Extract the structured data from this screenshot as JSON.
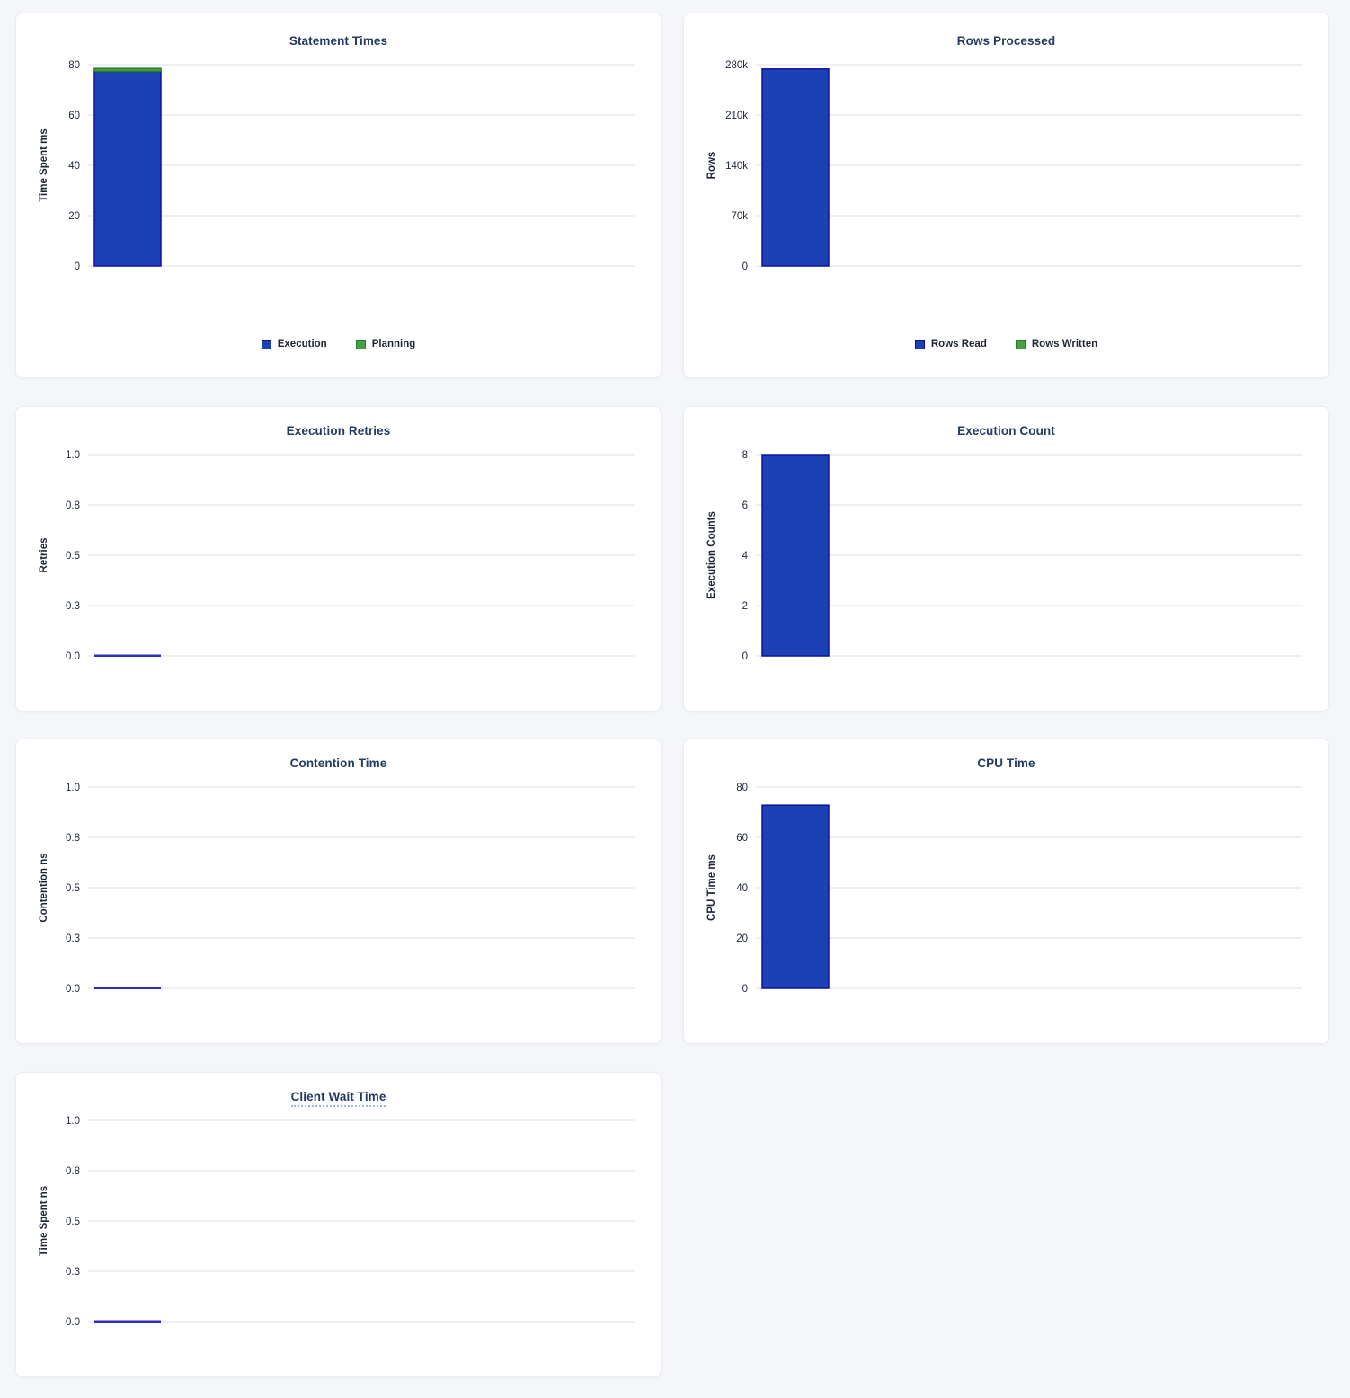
{
  "theme": {
    "page_background": "#f4f6fa",
    "card_background": "#ffffff",
    "card_border": "#e9edf3",
    "gridline_color": "#e9ebef",
    "tick_label_color": "#20293a",
    "axis_label_color": "#1d2533",
    "title_color": "#243a64",
    "series_blue": "#1c41b5",
    "series_blue_border": "#10129e",
    "series_green": "#44a33f",
    "series_green_border": "#2c7a2e",
    "zero_line_color": "#2d2ebc"
  },
  "chart_data": [
    {
      "type": "bar",
      "stacked": true,
      "title": "Statement Times",
      "xlabel": "",
      "ylabel": "Time Spent ms",
      "yticks": [
        "80",
        "60",
        "40",
        "20",
        "0"
      ],
      "ylim": [
        0,
        80
      ],
      "grid": true,
      "legend": true,
      "legend_position": "bottom",
      "categories": [
        ""
      ],
      "series": [
        {
          "name": "Execution",
          "color": "#1c41b5",
          "border_color": "#10129e",
          "values": [
            77.3
          ]
        },
        {
          "name": "Planning",
          "color": "#44a33f",
          "border_color": "#2c7a2e",
          "values": [
            1.2
          ]
        }
      ]
    },
    {
      "type": "bar",
      "stacked": true,
      "title": "Rows Processed",
      "xlabel": "",
      "ylabel": "Rows",
      "yticks": [
        "280k",
        "210k",
        "140k",
        "70k",
        "0"
      ],
      "ylim": [
        0,
        280000
      ],
      "grid": true,
      "legend": true,
      "legend_position": "bottom",
      "categories": [
        ""
      ],
      "series": [
        {
          "name": "Rows Read",
          "color": "#1c41b5",
          "border_color": "#10129e",
          "values": [
            274000
          ]
        },
        {
          "name": "Rows Written",
          "color": "#44a33f",
          "border_color": "#2c7a2e",
          "values": [
            0
          ]
        }
      ]
    },
    {
      "type": "bar",
      "stacked": false,
      "title": "Execution Retries",
      "xlabel": "",
      "ylabel": "Retries",
      "yticks": [
        "1.0",
        "0.8",
        "0.5",
        "0.3",
        "0.0"
      ],
      "ylim": [
        0,
        1
      ],
      "grid": true,
      "legend": false,
      "categories": [
        ""
      ],
      "series": [
        {
          "name": "Retries",
          "color": "#1c41b5",
          "border_color": "#10129e",
          "values": [
            0
          ]
        }
      ]
    },
    {
      "type": "bar",
      "stacked": false,
      "title": "Execution Count",
      "xlabel": "",
      "ylabel": "Execution Counts",
      "yticks": [
        "8",
        "6",
        "4",
        "2",
        "0"
      ],
      "ylim": [
        0,
        8
      ],
      "grid": true,
      "legend": false,
      "categories": [
        ""
      ],
      "series": [
        {
          "name": "Execution Count",
          "color": "#1c41b5",
          "border_color": "#10129e",
          "values": [
            8
          ]
        }
      ]
    },
    {
      "type": "bar",
      "stacked": false,
      "title": "Contention Time",
      "xlabel": "",
      "ylabel": "Contention ns",
      "yticks": [
        "1.0",
        "0.8",
        "0.5",
        "0.3",
        "0.0"
      ],
      "ylim": [
        0,
        1
      ],
      "grid": true,
      "legend": false,
      "categories": [
        ""
      ],
      "series": [
        {
          "name": "Contention",
          "color": "#1c41b5",
          "border_color": "#10129e",
          "values": [
            0
          ]
        }
      ]
    },
    {
      "type": "bar",
      "stacked": false,
      "title": "CPU Time",
      "xlabel": "",
      "ylabel": "CPU Time ms",
      "yticks": [
        "80",
        "60",
        "40",
        "20",
        "0"
      ],
      "ylim": [
        0,
        80
      ],
      "grid": true,
      "legend": false,
      "categories": [
        ""
      ],
      "series": [
        {
          "name": "CPU Time",
          "color": "#1c41b5",
          "border_color": "#10129e",
          "values": [
            72.8
          ]
        }
      ]
    },
    {
      "type": "bar",
      "stacked": false,
      "title": "Client Wait Time",
      "title_underlined": true,
      "xlabel": "",
      "ylabel": "Time Spent ns",
      "yticks": [
        "1.0",
        "0.8",
        "0.5",
        "0.3",
        "0.0"
      ],
      "ylim": [
        0,
        1
      ],
      "grid": true,
      "legend": false,
      "categories": [
        ""
      ],
      "series": [
        {
          "name": "Client Wait",
          "color": "#1c41b5",
          "border_color": "#10129e",
          "values": [
            0
          ]
        }
      ]
    }
  ]
}
